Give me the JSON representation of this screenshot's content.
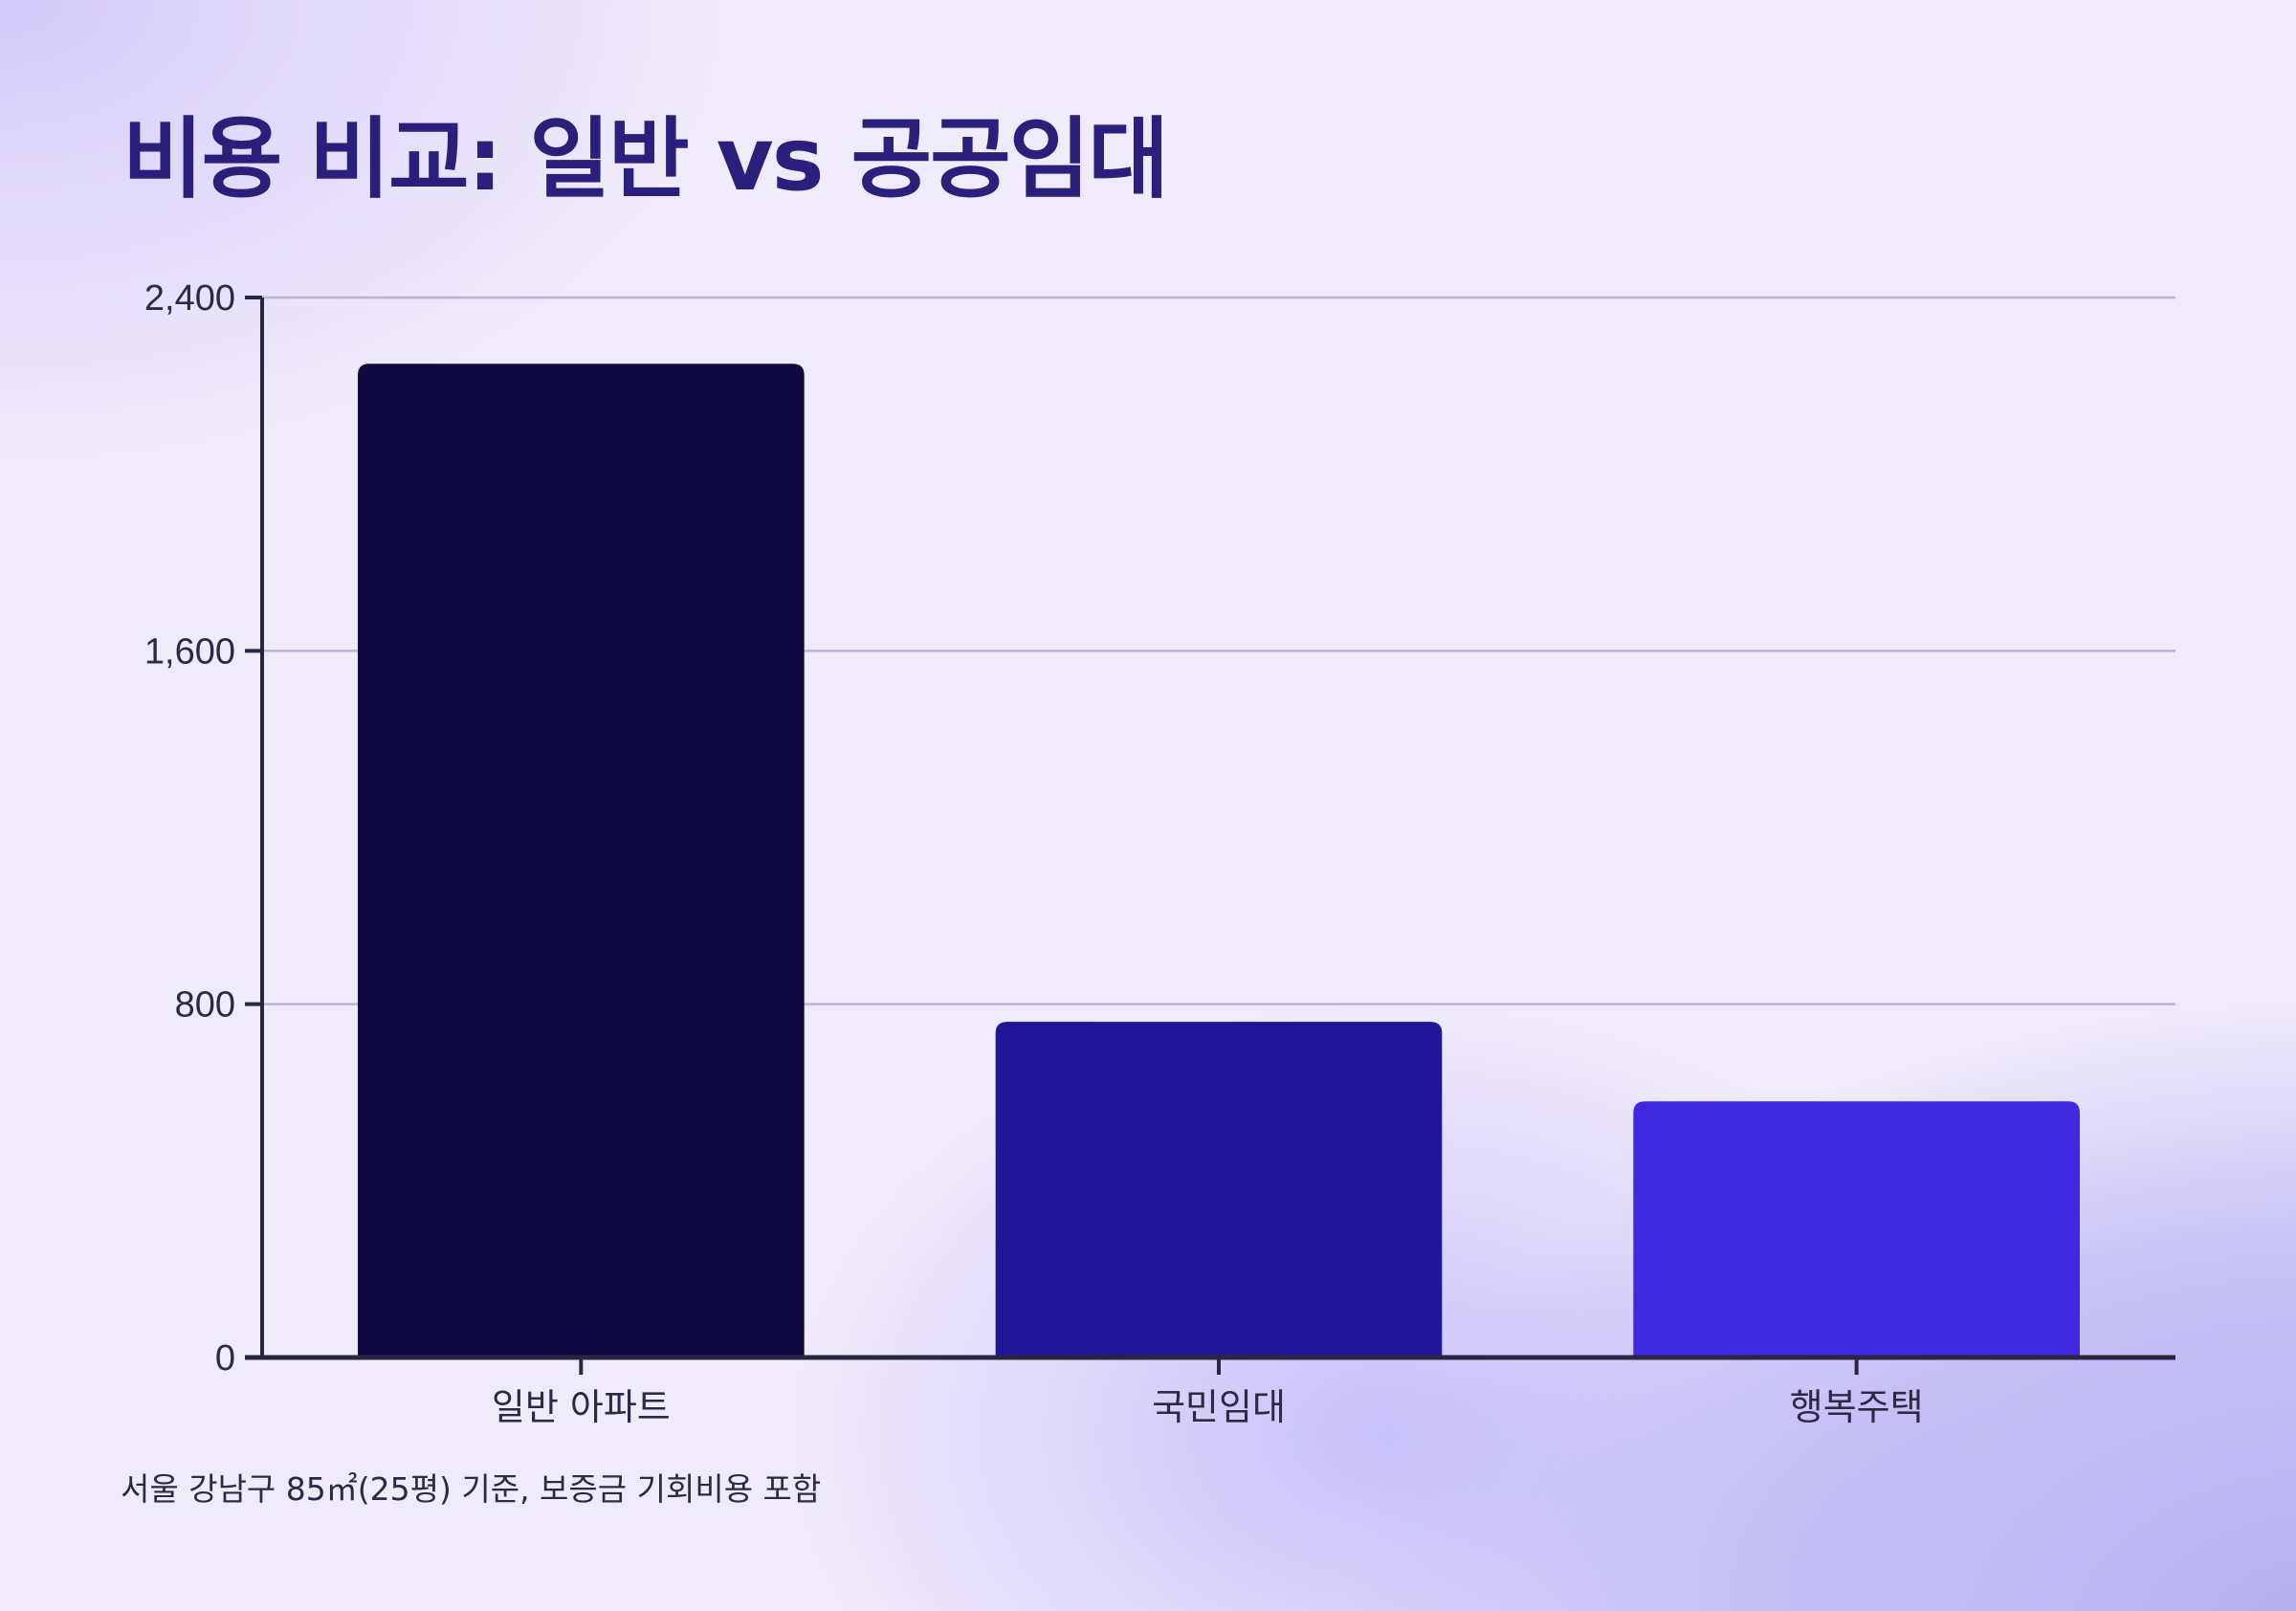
{
  "title": "비용 비교: 일반 vs 공공임대",
  "footnote": "서울 강남구 85㎡(25평) 기준, 보증금 기회비용 포함",
  "chart_data": {
    "type": "bar",
    "categories": [
      "일반 아파트",
      "국민임대",
      "행복주택"
    ],
    "values": [
      2250,
      760,
      580
    ],
    "colors": [
      "#110a42",
      "#231597",
      "#3f28e0"
    ],
    "ylim": [
      0,
      2400
    ],
    "yticks": [
      0,
      800,
      1600,
      2400
    ],
    "ytick_labels": [
      "0",
      "800",
      "1,600",
      "2,400"
    ],
    "grid": true,
    "xlabel": "",
    "ylabel": ""
  }
}
